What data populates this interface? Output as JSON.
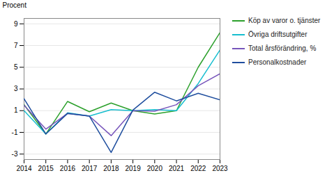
{
  "chart_data": {
    "type": "line",
    "x": [
      2014,
      2015,
      2016,
      2017,
      2018,
      2019,
      2020,
      2021,
      2022,
      2023
    ],
    "series": [
      {
        "name": "Köp av varor o. tjänster",
        "color": "#2ca02c",
        "values": [
          1.55,
          -1.15,
          1.85,
          0.9,
          1.7,
          1.0,
          0.7,
          1.0,
          5.0,
          8.2
        ]
      },
      {
        "name": "Övriga driftsutgifter",
        "color": "#17becf",
        "values": [
          1.0,
          -1.15,
          0.8,
          0.5,
          1.1,
          1.0,
          1.1,
          1.0,
          3.5,
          6.6
        ]
      },
      {
        "name": "Total årsförändring, %",
        "color": "#7755bb",
        "values": [
          1.5,
          -0.7,
          0.75,
          0.5,
          -1.3,
          1.0,
          0.95,
          1.55,
          3.3,
          4.4
        ]
      },
      {
        "name": "Personalkostnader",
        "color": "#1f4e9e",
        "values": [
          2.1,
          -1.15,
          0.75,
          0.5,
          -2.85,
          1.05,
          2.7,
          1.9,
          2.6,
          2.0
        ]
      }
    ],
    "ylabel": "Procent",
    "xlim": [
      2014,
      2023
    ],
    "xticks": [
      2014,
      2015,
      2016,
      2017,
      2018,
      2019,
      2020,
      2021,
      2022,
      2023
    ],
    "ylim": [
      -3.5,
      9.5
    ],
    "yticks": [
      -3,
      -1,
      1,
      3,
      5,
      7,
      9
    ],
    "grid": "y",
    "legend": "right"
  }
}
